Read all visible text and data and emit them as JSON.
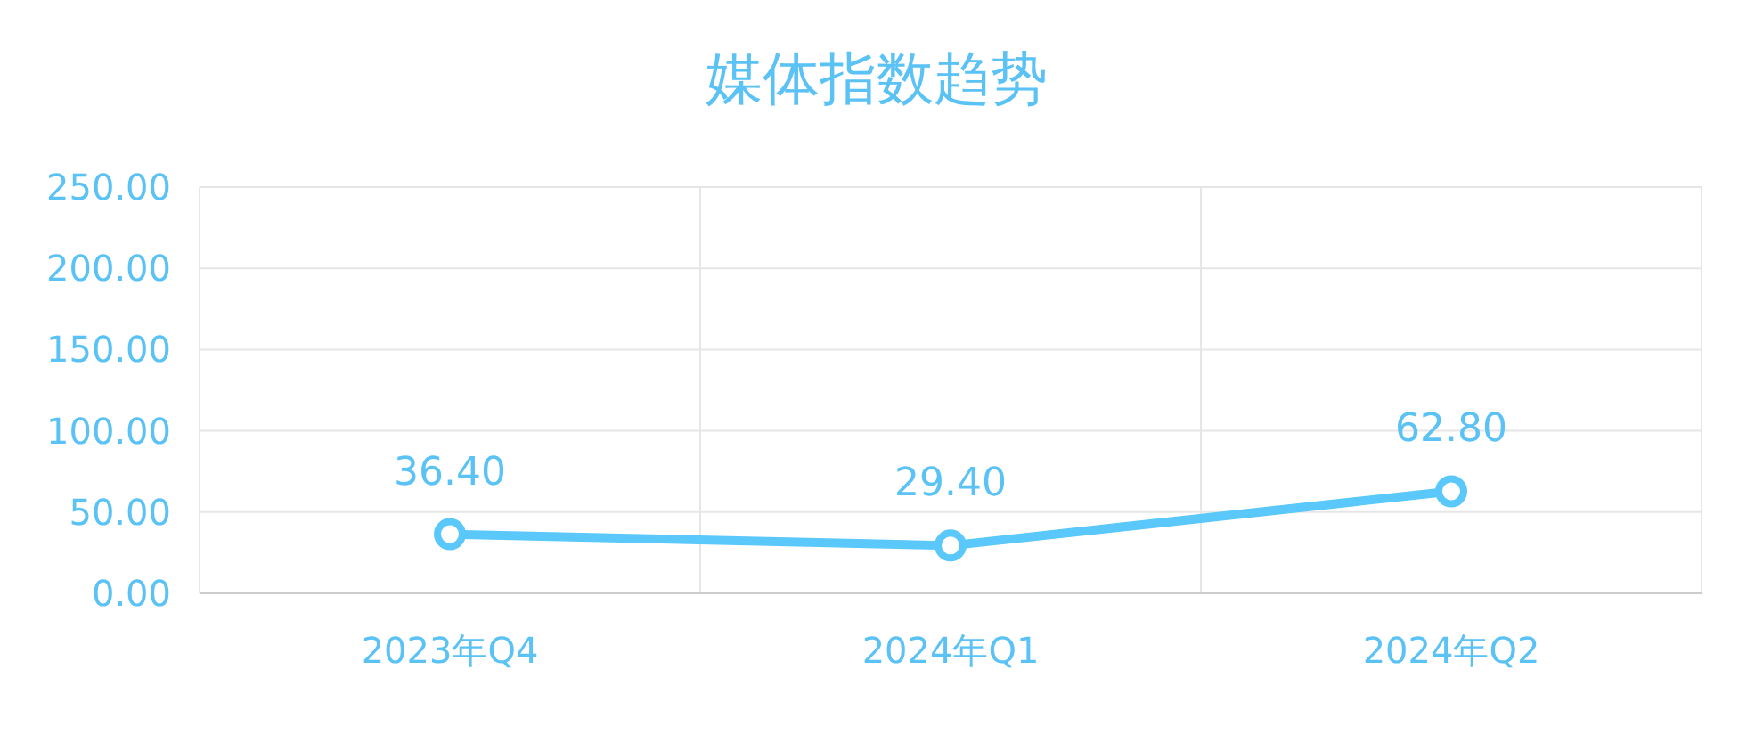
{
  "chart_data": {
    "type": "line",
    "title": "媒体指数趋势",
    "categories": [
      "2023年Q4",
      "2024年Q1",
      "2024年Q2"
    ],
    "series": [
      {
        "color": "#5ac8fa",
        "values": [
          36.4,
          29.4,
          62.8
        ],
        "value_labels": [
          "36.40",
          "29.40",
          "62.80"
        ]
      }
    ],
    "ylim": [
      0,
      250
    ],
    "yticks": [
      {
        "value": 0,
        "label": "0.00"
      },
      {
        "value": 50,
        "label": "50.00"
      },
      {
        "value": 100,
        "label": "100.00"
      },
      {
        "value": 150,
        "label": "150.00"
      },
      {
        "value": 200,
        "label": "200.00"
      },
      {
        "value": 250,
        "label": "250.00"
      }
    ],
    "grid": true,
    "marker": "circle",
    "line_style": "solid"
  }
}
